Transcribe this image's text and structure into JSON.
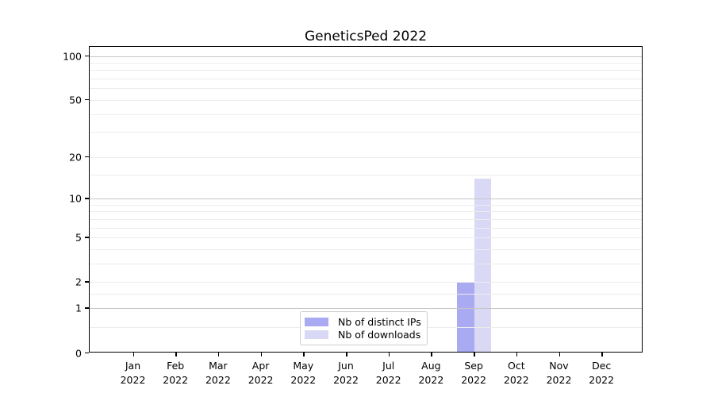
{
  "chart_data": {
    "type": "bar",
    "title": "GeneticsPed 2022",
    "categories": [
      "Jan",
      "Feb",
      "Mar",
      "Apr",
      "May",
      "Jun",
      "Jul",
      "Aug",
      "Sep",
      "Oct",
      "Nov",
      "Dec"
    ],
    "category_year": "2022",
    "series": [
      {
        "name": "Nb of distinct IPs",
        "color": "#aaaaf2",
        "values": [
          0,
          0,
          0,
          0,
          0,
          0,
          0,
          0,
          2,
          0,
          0,
          0
        ]
      },
      {
        "name": "Nb of downloads",
        "color": "#d9d9f6",
        "values": [
          0,
          0,
          0,
          0,
          0,
          0,
          0,
          0,
          14,
          0,
          0,
          0
        ]
      }
    ],
    "yscale": "log1p",
    "ylim": [
      0,
      115
    ],
    "yticks": [
      0,
      1,
      2,
      5,
      10,
      20,
      50,
      100
    ],
    "major_gridlines": [
      1,
      10,
      100
    ],
    "minor_gridlines": [
      0.5,
      1.5,
      2,
      3,
      4,
      5,
      6,
      7,
      8,
      9,
      15,
      20,
      30,
      40,
      50,
      60,
      70,
      80,
      90
    ],
    "grid_above_bars": true,
    "legend_position": "lower center",
    "colors": {
      "major_grid": "#c6c6c6",
      "minor_grid": "#ececec",
      "spine": "#000000",
      "text": "#000000",
      "legend_border": "#cccccc"
    }
  }
}
